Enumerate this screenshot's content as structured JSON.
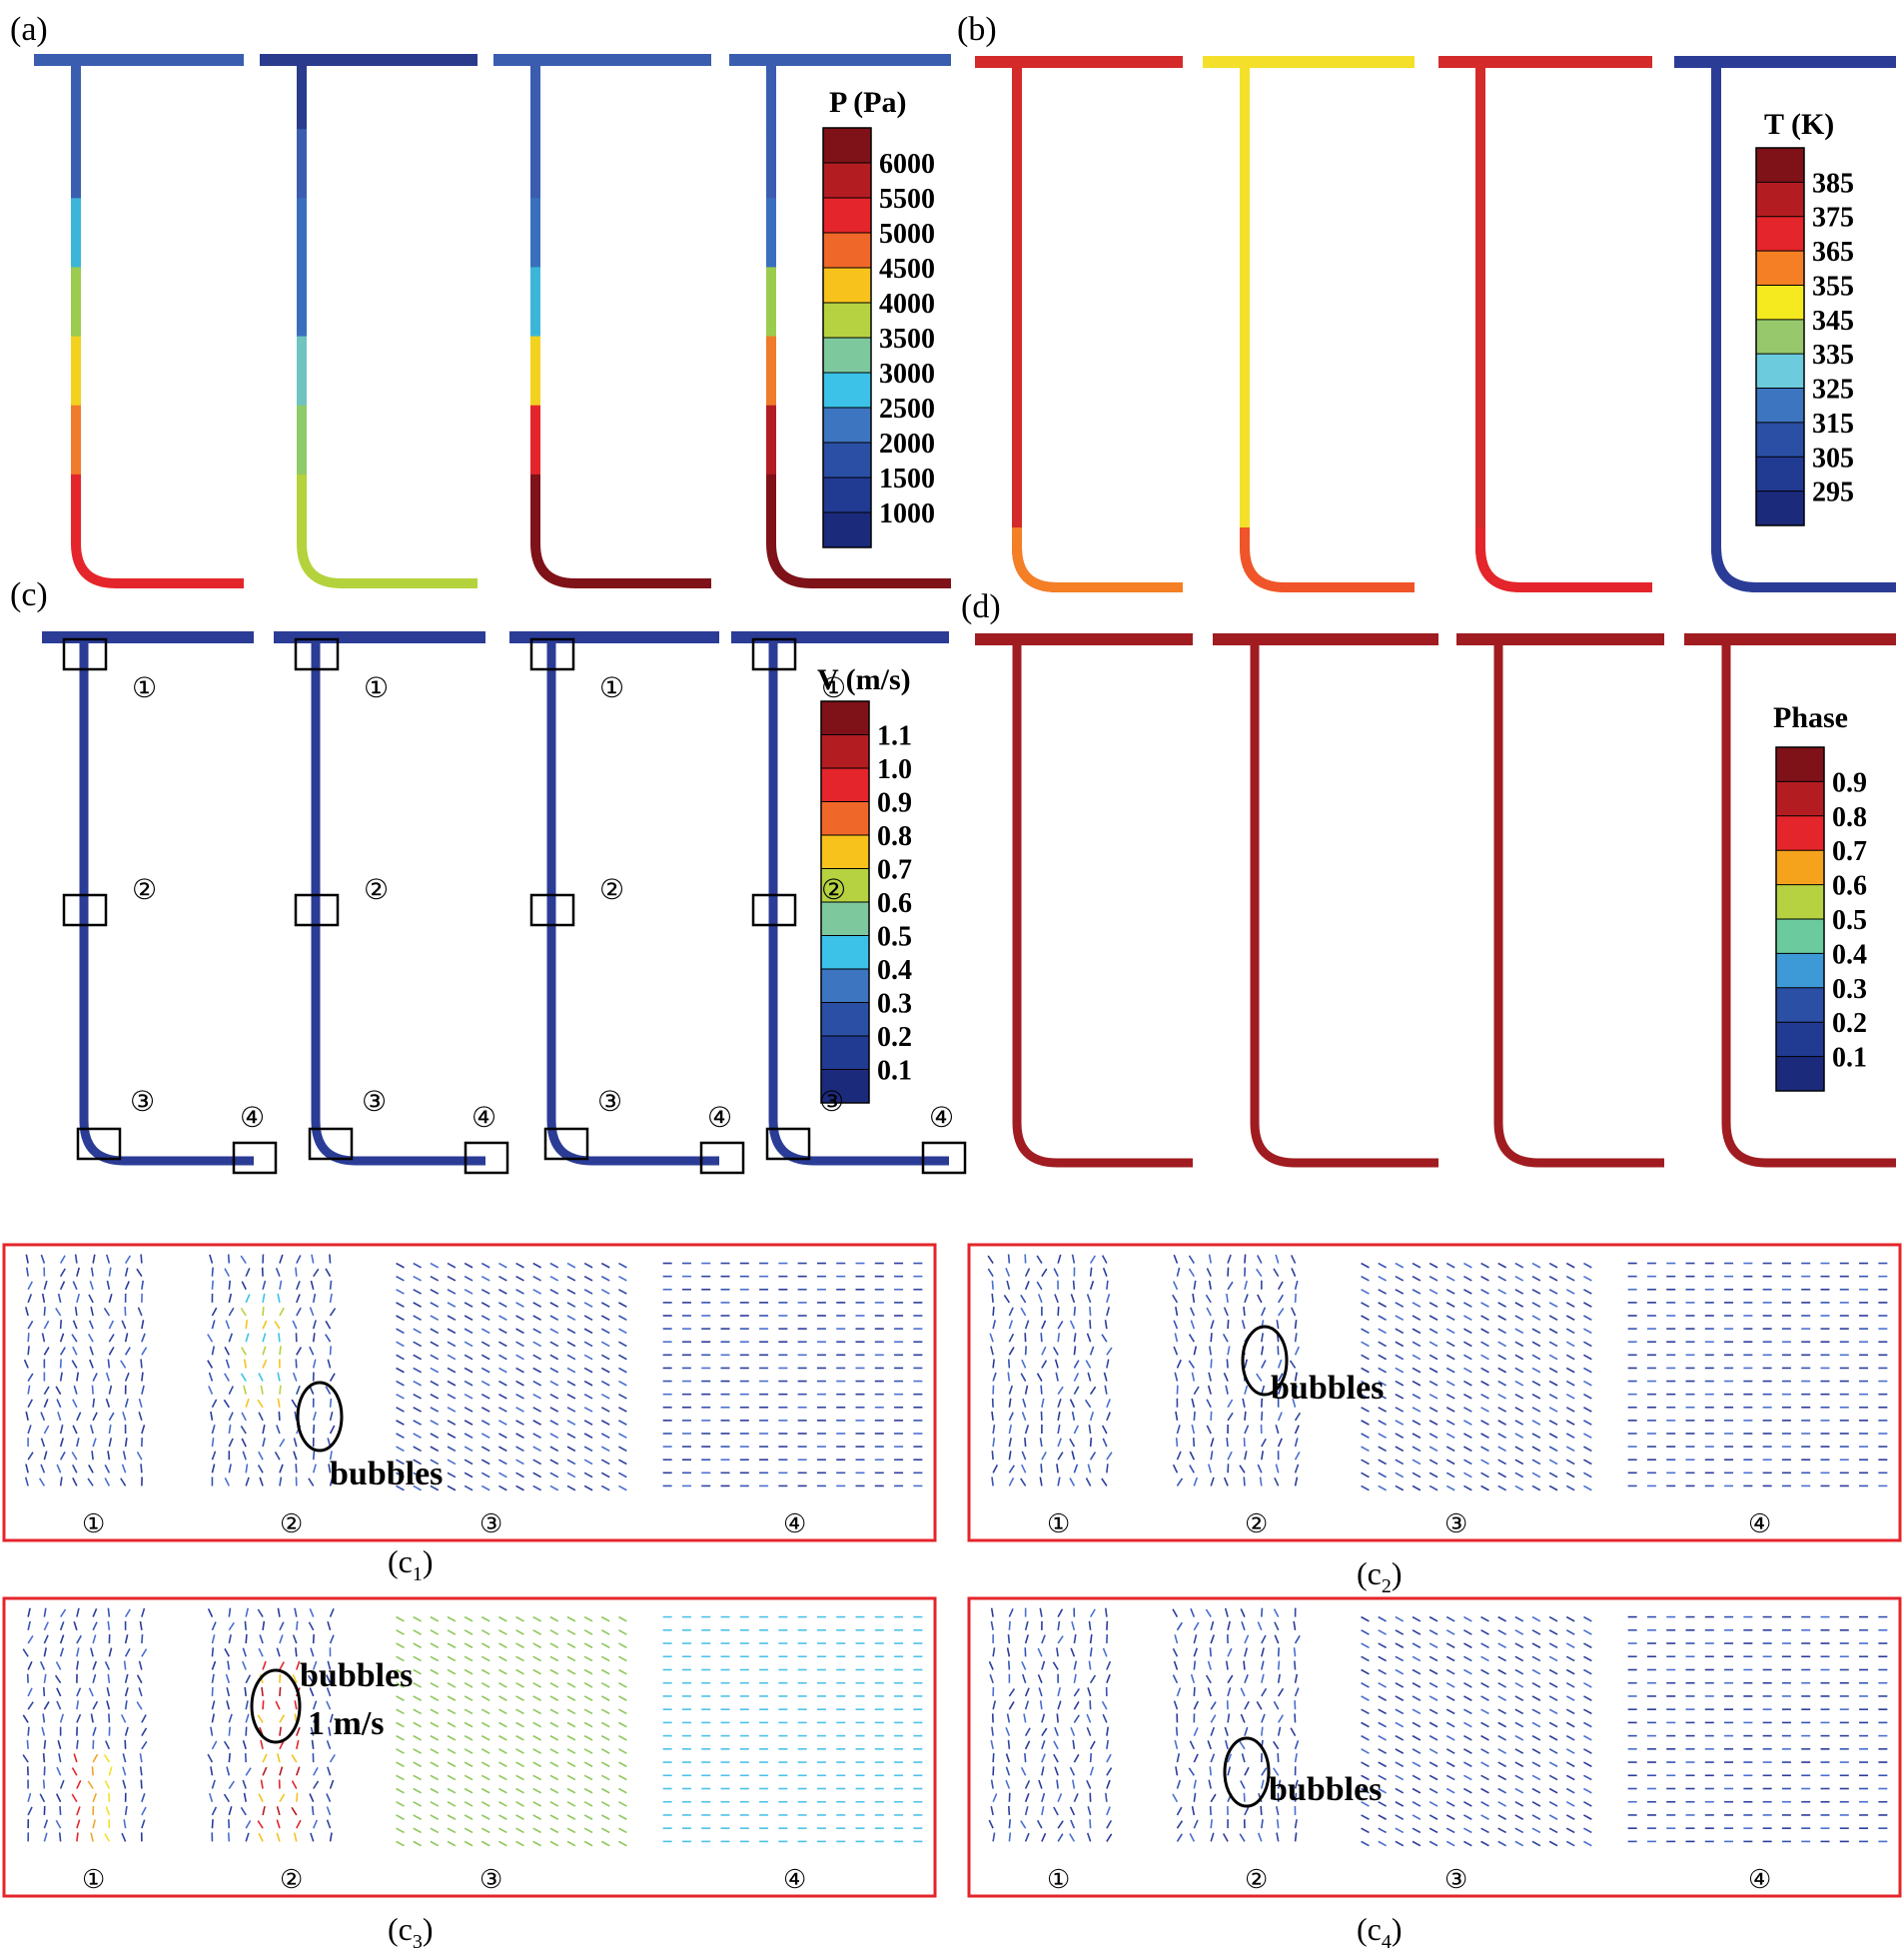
{
  "panels": {
    "a": {
      "label": "(a)"
    },
    "b": {
      "label": "(b)"
    },
    "c": {
      "label": "(c)"
    },
    "d": {
      "label": "(d)"
    }
  },
  "colorbars": {
    "pressure": {
      "title": "P (Pa)",
      "ticks": [
        "6000",
        "5500",
        "5000",
        "4500",
        "4000",
        "3500",
        "3000",
        "2500",
        "2000",
        "1500",
        "1000"
      ],
      "colors": [
        "#7e1218",
        "#b31d22",
        "#e4252b",
        "#f0672a",
        "#f7c21c",
        "#b6d240",
        "#7ec89e",
        "#3cc2e8",
        "#3d75c0",
        "#2b4fa4",
        "#213a92",
        "#1c2a7c"
      ]
    },
    "temperature": {
      "title": "T (K)",
      "ticks": [
        "385",
        "375",
        "365",
        "355",
        "345",
        "335",
        "325",
        "315",
        "305",
        "295"
      ],
      "colors": [
        "#7e1218",
        "#b31d22",
        "#e4252b",
        "#f47f25",
        "#f4ea1f",
        "#97c96c",
        "#6ccbdd",
        "#3d75c0",
        "#2b4fa4",
        "#213a92",
        "#1c2a7c"
      ]
    },
    "velocity": {
      "title": "V (m/s)",
      "ticks": [
        "1.1",
        "1.0",
        "0.9",
        "0.8",
        "0.7",
        "0.6",
        "0.5",
        "0.4",
        "0.3",
        "0.2",
        "0.1"
      ],
      "colors": [
        "#7e1218",
        "#b31d22",
        "#e4252b",
        "#f0672a",
        "#f7c21c",
        "#b6d240",
        "#7ec89e",
        "#3cc2e8",
        "#3d75c0",
        "#2b4fa4",
        "#213a92",
        "#1c2a7c"
      ]
    },
    "phase": {
      "title": "Phase",
      "ticks": [
        "0.9",
        "0.8",
        "0.7",
        "0.6",
        "0.5",
        "0.4",
        "0.3",
        "0.2",
        "0.1"
      ],
      "colors": [
        "#7e1218",
        "#b31d22",
        "#e4252b",
        "#f5a21d",
        "#b6d240",
        "#6ccb9e",
        "#3d9ad6",
        "#2b4fa4",
        "#213a92",
        "#1c2a7c"
      ]
    }
  },
  "pipe_colors": {
    "a": [
      [
        "#3a5db0",
        "#3a5db0",
        "#3cb6d8",
        "#9bcc50",
        "#f2d21e",
        "#f07b2a",
        "#e4252b"
      ],
      [
        "#2a3a8c",
        "#3a5db0",
        "#3a6fbd",
        "#3a6fbd",
        "#6fc4c0",
        "#8fca6a",
        "#b4d23c"
      ],
      [
        "#3a5db0",
        "#3a5db0",
        "#3a6fbd",
        "#3cb6d8",
        "#f2d21e",
        "#e4252b",
        "#7e1218"
      ],
      [
        "#3a5db0",
        "#3a5db0",
        "#3a6fbd",
        "#9bcc50",
        "#f07b2a",
        "#b31d22",
        "#7e1218"
      ]
    ],
    "b": [
      "#d42a2a",
      "#f4e02a",
      "#d42a2a",
      "#2b3c96"
    ],
    "b_bottom": [
      "#f47f25",
      "#f0542a",
      "#e4252b",
      "#2b3c96"
    ],
    "c": "#2b3c96",
    "d": "#a01c20"
  },
  "probes": {
    "one": "①",
    "two": "②",
    "three": "③",
    "four": "④"
  },
  "insets": [
    {
      "caption": "(c",
      "sub": "1",
      "bubbles": "bubbles",
      "regions": [
        "①",
        "②",
        "③",
        "④"
      ]
    },
    {
      "caption": "(c",
      "sub": "2",
      "bubbles": "bubbles",
      "regions": [
        "①",
        "②",
        "③",
        "④"
      ]
    },
    {
      "caption": "(c",
      "sub": "3",
      "bubbles": "bubbles",
      "speed_note": "1 m/s",
      "regions": [
        "①",
        "②",
        "③",
        "④"
      ]
    },
    {
      "caption": "(c",
      "sub": "4",
      "bubbles": "bubbles",
      "regions": [
        "①",
        "②",
        "③",
        "④"
      ]
    }
  ]
}
